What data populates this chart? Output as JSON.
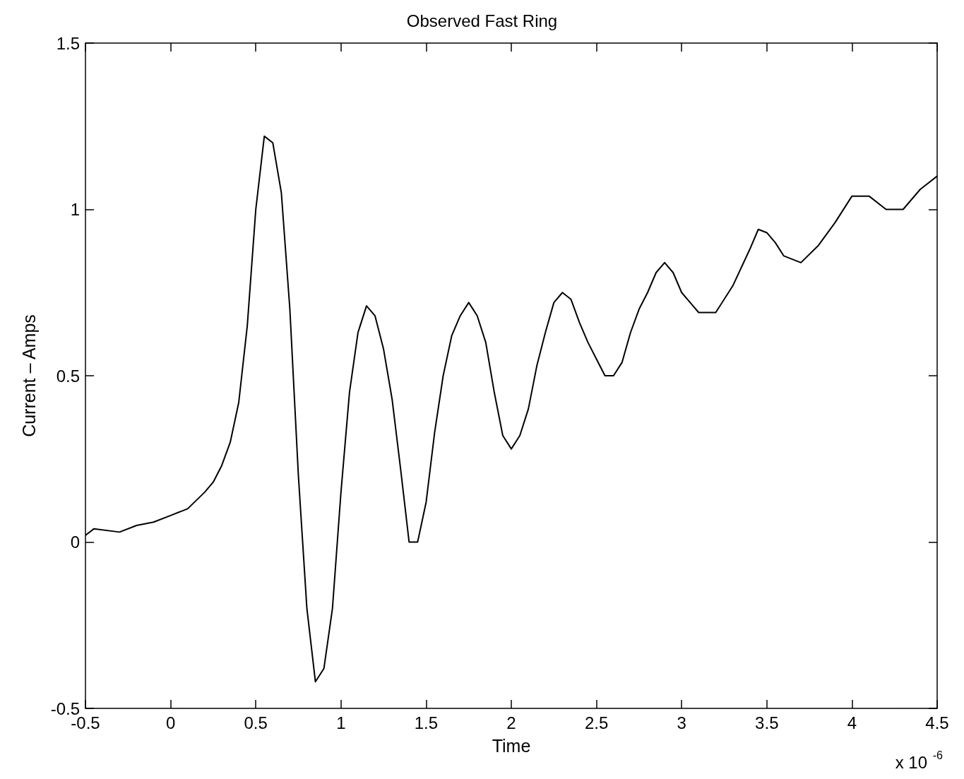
{
  "chart_data": {
    "type": "line",
    "title": "Observed Fast Ring",
    "xlabel": "Time",
    "ylabel": "Current – Amps",
    "annotations": [
      "x 10$^{-6}$"
    ],
    "x": [
      -0.5,
      -0.45,
      -0.3,
      -0.2,
      -0.1,
      0,
      0.1,
      0.2,
      0.25,
      0.3,
      0.35,
      0.4,
      0.45,
      0.5,
      0.55,
      0.6,
      0.65,
      0.7,
      0.75,
      0.8,
      0.85,
      0.9,
      0.95,
      1.0,
      1.05,
      1.1,
      1.15,
      1.2,
      1.25,
      1.3,
      1.35,
      1.4,
      1.45,
      1.5,
      1.55,
      1.6,
      1.65,
      1.7,
      1.75,
      1.8,
      1.85,
      1.9,
      1.95,
      2.0,
      2.05,
      2.1,
      2.15,
      2.2,
      2.25,
      2.3,
      2.35,
      2.4,
      2.45,
      2.5,
      2.55,
      2.6,
      2.65,
      2.7,
      2.75,
      2.8,
      2.85,
      2.9,
      2.95,
      3.0,
      3.05,
      3.1,
      3.2,
      3.3,
      3.4,
      3.45,
      3.5,
      3.55,
      3.6,
      3.7,
      3.8,
      3.9,
      4.0,
      4.05,
      4.1,
      4.2,
      4.3,
      4.4,
      4.5
    ],
    "series": [
      {
        "color": "#000000",
        "values": [
          0.02,
          0.04,
          0.03,
          0.05,
          0.06,
          0.08,
          0.1,
          0.15,
          0.18,
          0.23,
          0.3,
          0.42,
          0.65,
          1.0,
          1.22,
          1.2,
          1.05,
          0.7,
          0.2,
          -0.2,
          -0.42,
          -0.38,
          -0.2,
          0.15,
          0.45,
          0.63,
          0.71,
          0.68,
          0.58,
          0.43,
          0.22,
          0.0,
          0.0,
          0.12,
          0.33,
          0.5,
          0.62,
          0.68,
          0.72,
          0.68,
          0.6,
          0.45,
          0.32,
          0.28,
          0.32,
          0.4,
          0.53,
          0.63,
          0.72,
          0.75,
          0.73,
          0.66,
          0.6,
          0.55,
          0.5,
          0.5,
          0.54,
          0.63,
          0.7,
          0.75,
          0.81,
          0.84,
          0.81,
          0.75,
          0.72,
          0.69,
          0.69,
          0.77,
          0.88,
          0.94,
          0.93,
          0.9,
          0.86,
          0.84,
          0.89,
          0.96,
          1.04,
          1.04,
          1.04,
          1.0,
          1.0,
          1.06,
          1.1
        ]
      }
    ],
    "xlim": [
      -0.5,
      4.5
    ],
    "xticks": [
      -0.5,
      0,
      0.5,
      1,
      1.5,
      2,
      2.5,
      3,
      3.5,
      4,
      4.5
    ],
    "ylim": [
      -0.5,
      1.5
    ],
    "yticks": [
      -0.5,
      0,
      0.5,
      1,
      1.5
    ],
    "marker": "none",
    "line_style": "solid"
  }
}
